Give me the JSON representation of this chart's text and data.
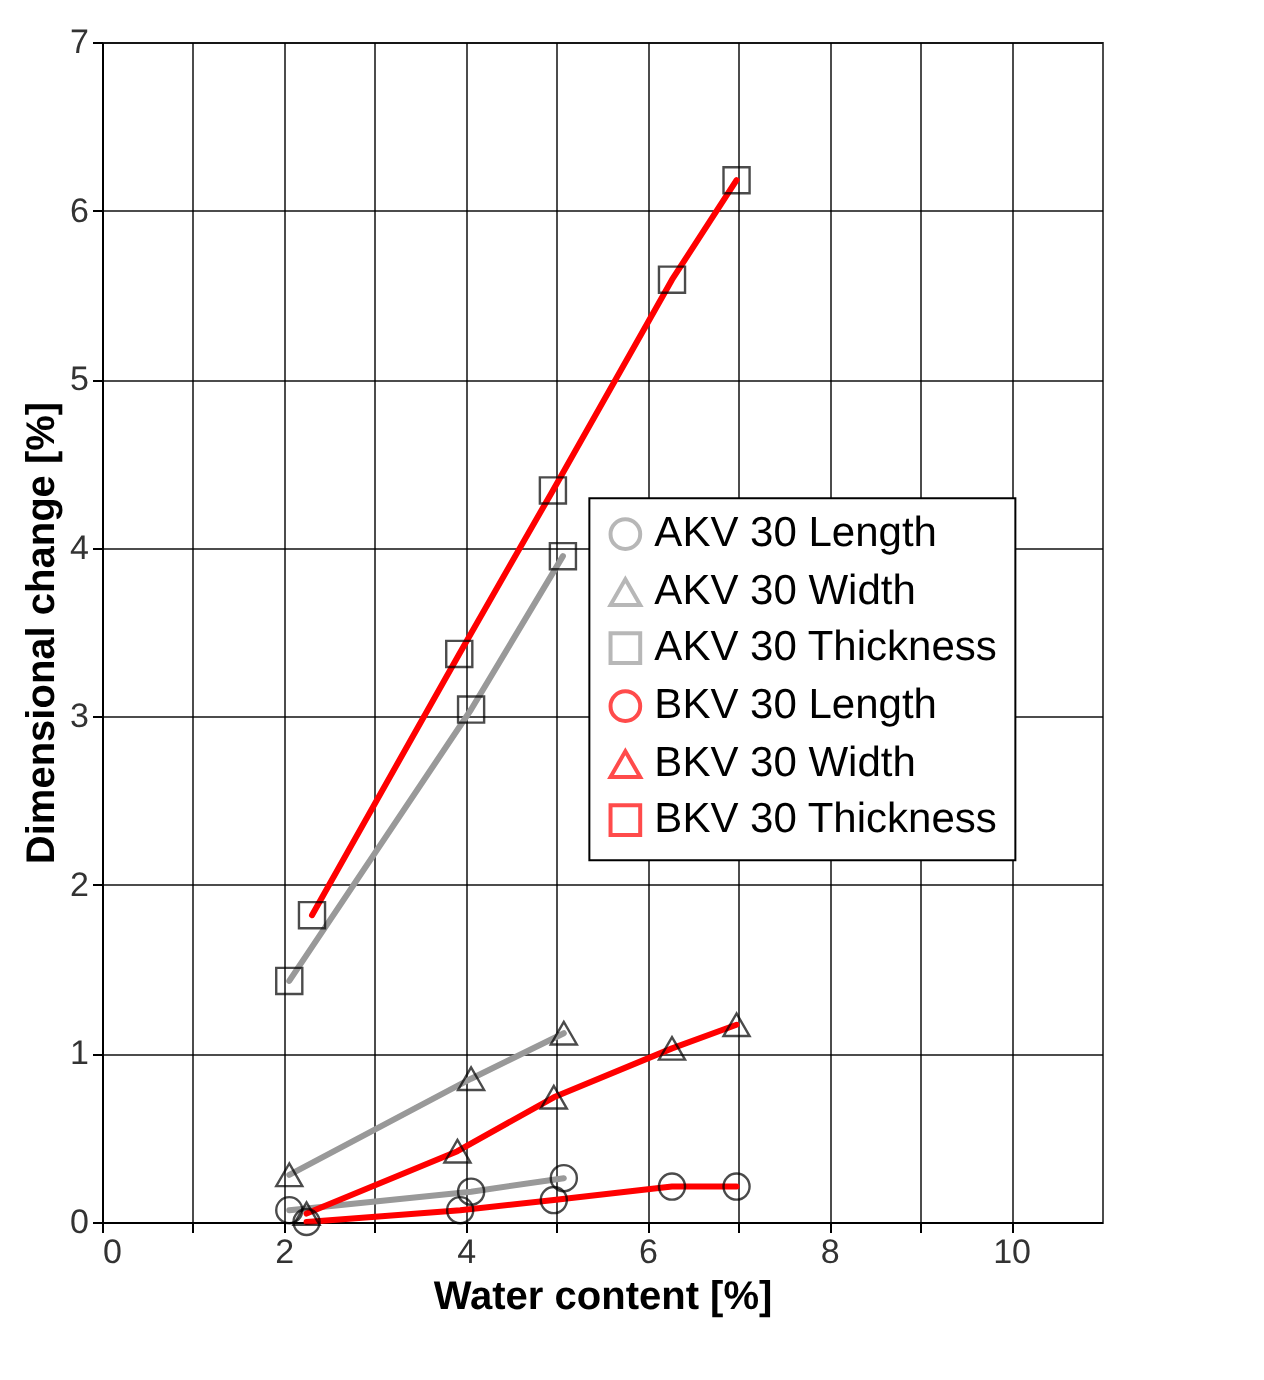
{
  "chart_data": {
    "type": "line",
    "xlabel": "Water content [%]",
    "ylabel": "Dimensional change [%]",
    "xlim": [
      0,
      11
    ],
    "xticks": [
      0,
      {
        "value": 1,
        "label": null
      },
      2,
      {
        "value": 3,
        "label": null
      },
      4,
      {
        "value": 5,
        "label": null
      },
      6,
      {
        "value": 7,
        "label": null
      },
      8,
      {
        "value": 9,
        "label": null
      },
      10
    ],
    "ylim": [
      0,
      7
    ],
    "yticks": [
      0,
      1,
      2,
      3,
      4,
      5,
      6,
      7
    ],
    "grid": true,
    "legend": "right",
    "line_style": "solid",
    "series": [
      {
        "name": "AKV 30 Length",
        "color": "#999999",
        "marker": "circle",
        "x": [
          2.06,
          4.06,
          5.08
        ],
        "values": [
          0.07,
          0.18,
          0.26
        ]
      },
      {
        "name": "AKV 30 Width",
        "color": "#999999",
        "marker": "triangle",
        "x": [
          2.06,
          4.06,
          5.08
        ],
        "values": [
          0.28,
          0.85,
          1.12
        ]
      },
      {
        "name": "AKV 30 Thickness",
        "color": "#999999",
        "marker": "square",
        "x": [
          2.06,
          4.06,
          5.07
        ],
        "values": [
          1.43,
          3.04,
          3.95
        ]
      },
      {
        "name": "BKV 30 Length",
        "color": "#ff0000",
        "marker": "circle",
        "x": [
          2.25,
          3.94,
          4.97,
          6.27,
          6.98
        ],
        "values": [
          0.0,
          0.07,
          0.13,
          0.21,
          0.21
        ]
      },
      {
        "name": "BKV 30 Width",
        "color": "#ff0000",
        "marker": "triangle",
        "x": [
          2.25,
          3.91,
          4.97,
          6.27,
          6.98
        ],
        "values": [
          0.05,
          0.42,
          0.74,
          1.03,
          1.17
        ]
      },
      {
        "name": "BKV 30 Thickness",
        "color": "#ff0000",
        "marker": "square",
        "x": [
          2.31,
          3.93,
          4.96,
          6.27,
          6.98
        ],
        "values": [
          1.82,
          3.37,
          4.34,
          5.59,
          6.18
        ]
      }
    ]
  }
}
